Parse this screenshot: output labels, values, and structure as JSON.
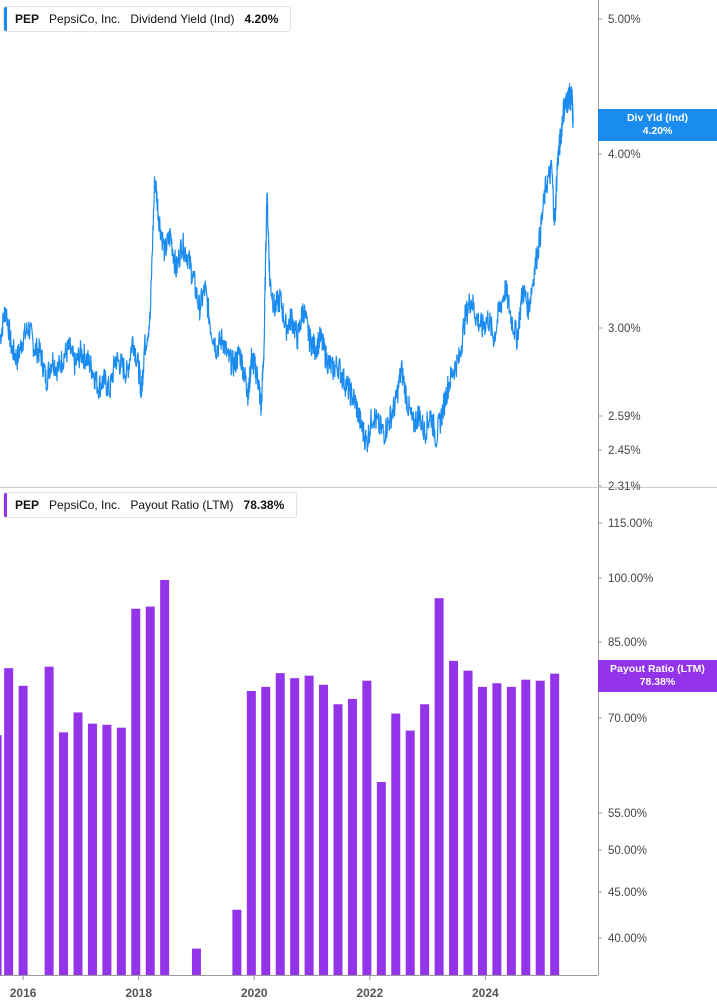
{
  "colors": {
    "line": "#1a8cf0",
    "bars": "#9333ea",
    "axis": "#999999",
    "divider": "#cccccc"
  },
  "top_legend": {
    "symbol": "PEP",
    "company": "PepsiCo, Inc.",
    "metric": "Dividend Yield (Ind)",
    "value": "4.20%"
  },
  "bottom_legend": {
    "symbol": "PEP",
    "company": "PepsiCo, Inc.",
    "metric": "Payout Ratio (LTM)",
    "value": "78.38%"
  },
  "top_flag": {
    "line1": "Div Yld (Ind)",
    "line2": "4.20%"
  },
  "bottom_flag": {
    "line1": "Payout Ratio (LTM)",
    "line2": "78.38%"
  },
  "chart_data": [
    {
      "type": "line",
      "series_name": "Dividend Yield (Ind)",
      "y_ticks": [
        "5.00%",
        "4.00%",
        "3.00%",
        "2.59%",
        "2.45%",
        "2.31%"
      ],
      "y_tick_values": [
        5.0,
        4.0,
        3.0,
        2.59,
        2.45,
        2.31
      ],
      "x_range": [
        2015.6,
        2025.95
      ],
      "points": [
        [
          2015.6,
          2.95
        ],
        [
          2015.7,
          3.1
        ],
        [
          2015.8,
          2.9
        ],
        [
          2015.9,
          2.85
        ],
        [
          2016.0,
          2.95
        ],
        [
          2016.1,
          3.0
        ],
        [
          2016.2,
          2.9
        ],
        [
          2016.3,
          2.88
        ],
        [
          2016.4,
          2.75
        ],
        [
          2016.5,
          2.85
        ],
        [
          2016.6,
          2.8
        ],
        [
          2016.7,
          2.86
        ],
        [
          2016.8,
          2.9
        ],
        [
          2016.9,
          2.82
        ],
        [
          2017.0,
          2.88
        ],
        [
          2017.1,
          2.85
        ],
        [
          2017.2,
          2.8
        ],
        [
          2017.3,
          2.72
        ],
        [
          2017.4,
          2.75
        ],
        [
          2017.5,
          2.7
        ],
        [
          2017.6,
          2.85
        ],
        [
          2017.7,
          2.82
        ],
        [
          2017.8,
          2.78
        ],
        [
          2017.9,
          2.95
        ],
        [
          2018.0,
          2.8
        ],
        [
          2018.05,
          2.7
        ],
        [
          2018.1,
          2.9
        ],
        [
          2018.2,
          3.05
        ],
        [
          2018.28,
          3.85
        ],
        [
          2018.35,
          3.6
        ],
        [
          2018.45,
          3.4
        ],
        [
          2018.55,
          3.5
        ],
        [
          2018.65,
          3.3
        ],
        [
          2018.75,
          3.45
        ],
        [
          2018.85,
          3.38
        ],
        [
          2018.95,
          3.25
        ],
        [
          2019.05,
          3.1
        ],
        [
          2019.15,
          3.2
        ],
        [
          2019.25,
          3.0
        ],
        [
          2019.35,
          2.9
        ],
        [
          2019.45,
          2.95
        ],
        [
          2019.55,
          2.85
        ],
        [
          2019.65,
          2.82
        ],
        [
          2019.75,
          2.88
        ],
        [
          2019.85,
          2.75
        ],
        [
          2019.9,
          2.68
        ],
        [
          2019.95,
          2.85
        ],
        [
          2020.0,
          2.82
        ],
        [
          2020.07,
          2.75
        ],
        [
          2020.12,
          2.62
        ],
        [
          2020.17,
          2.9
        ],
        [
          2020.22,
          3.75
        ],
        [
          2020.27,
          3.25
        ],
        [
          2020.35,
          3.1
        ],
        [
          2020.45,
          3.15
        ],
        [
          2020.55,
          3.0
        ],
        [
          2020.65,
          3.05
        ],
        [
          2020.75,
          2.95
        ],
        [
          2020.85,
          3.1
        ],
        [
          2020.95,
          2.95
        ],
        [
          2021.05,
          2.9
        ],
        [
          2021.15,
          2.95
        ],
        [
          2021.25,
          2.85
        ],
        [
          2021.35,
          2.8
        ],
        [
          2021.45,
          2.82
        ],
        [
          2021.55,
          2.75
        ],
        [
          2021.65,
          2.7
        ],
        [
          2021.75,
          2.65
        ],
        [
          2021.85,
          2.55
        ],
        [
          2021.95,
          2.48
        ],
        [
          2022.05,
          2.6
        ],
        [
          2022.15,
          2.55
        ],
        [
          2022.25,
          2.52
        ],
        [
          2022.35,
          2.58
        ],
        [
          2022.45,
          2.65
        ],
        [
          2022.55,
          2.8
        ],
        [
          2022.65,
          2.65
        ],
        [
          2022.75,
          2.55
        ],
        [
          2022.85,
          2.6
        ],
        [
          2022.95,
          2.52
        ],
        [
          2023.05,
          2.6
        ],
        [
          2023.15,
          2.5
        ],
        [
          2023.25,
          2.6
        ],
        [
          2023.35,
          2.72
        ],
        [
          2023.45,
          2.8
        ],
        [
          2023.55,
          2.85
        ],
        [
          2023.65,
          3.05
        ],
        [
          2023.75,
          3.15
        ],
        [
          2023.85,
          3.05
        ],
        [
          2023.95,
          3.0
        ],
        [
          2024.05,
          3.05
        ],
        [
          2024.15,
          2.95
        ],
        [
          2024.25,
          3.1
        ],
        [
          2024.35,
          3.2
        ],
        [
          2024.45,
          3.05
        ],
        [
          2024.55,
          2.95
        ],
        [
          2024.65,
          3.2
        ],
        [
          2024.75,
          3.1
        ],
        [
          2024.85,
          3.3
        ],
        [
          2024.95,
          3.5
        ],
        [
          2025.05,
          3.8
        ],
        [
          2025.15,
          3.9
        ],
        [
          2025.2,
          3.55
        ],
        [
          2025.25,
          3.95
        ],
        [
          2025.3,
          4.1
        ],
        [
          2025.35,
          4.3
        ],
        [
          2025.4,
          4.35
        ],
        [
          2025.45,
          4.4
        ],
        [
          2025.5,
          4.38
        ],
        [
          2025.52,
          4.2
        ]
      ]
    },
    {
      "type": "bar",
      "series_name": "Payout Ratio (LTM)",
      "y_ticks": [
        "115.00%",
        "100.00%",
        "85.00%",
        "70.00%",
        "55.00%",
        "50.00%",
        "45.00%",
        "40.00%"
      ],
      "y_tick_values": [
        115,
        100,
        85,
        70,
        55,
        50,
        45,
        40
      ],
      "x_ticks": [
        "2016",
        "2018",
        "2020",
        "2022",
        "2024"
      ],
      "x_tick_values": [
        2016,
        2018,
        2020,
        2022,
        2024
      ],
      "x_range": [
        2015.6,
        2025.95
      ],
      "bars": [
        [
          2015.55,
          67.0
        ],
        [
          2015.75,
          79.5
        ],
        [
          2016.0,
          76.0
        ],
        [
          2016.45,
          79.8
        ],
        [
          2016.7,
          67.5
        ],
        [
          2016.95,
          71.0
        ],
        [
          2017.2,
          69.0
        ],
        [
          2017.45,
          68.8
        ],
        [
          2017.7,
          68.3
        ],
        [
          2017.95,
          92.5
        ],
        [
          2018.2,
          93.0
        ],
        [
          2018.45,
          99.5
        ],
        [
          2019.0,
          38.5
        ],
        [
          2019.7,
          43.0
        ],
        [
          2019.95,
          75.0
        ],
        [
          2020.2,
          75.8
        ],
        [
          2020.45,
          78.5
        ],
        [
          2020.7,
          77.5
        ],
        [
          2020.95,
          78.0
        ],
        [
          2021.2,
          76.2
        ],
        [
          2021.45,
          72.5
        ],
        [
          2021.7,
          73.5
        ],
        [
          2021.95,
          77.0
        ],
        [
          2022.2,
          59.5
        ],
        [
          2022.45,
          70.8
        ],
        [
          2022.7,
          67.8
        ],
        [
          2022.95,
          72.5
        ],
        [
          2023.2,
          95.0
        ],
        [
          2023.45,
          81.0
        ],
        [
          2023.7,
          79.0
        ],
        [
          2023.95,
          75.8
        ],
        [
          2024.2,
          76.5
        ],
        [
          2024.45,
          75.8
        ],
        [
          2024.7,
          77.2
        ],
        [
          2024.95,
          77.0
        ],
        [
          2025.2,
          78.4
        ]
      ]
    }
  ]
}
